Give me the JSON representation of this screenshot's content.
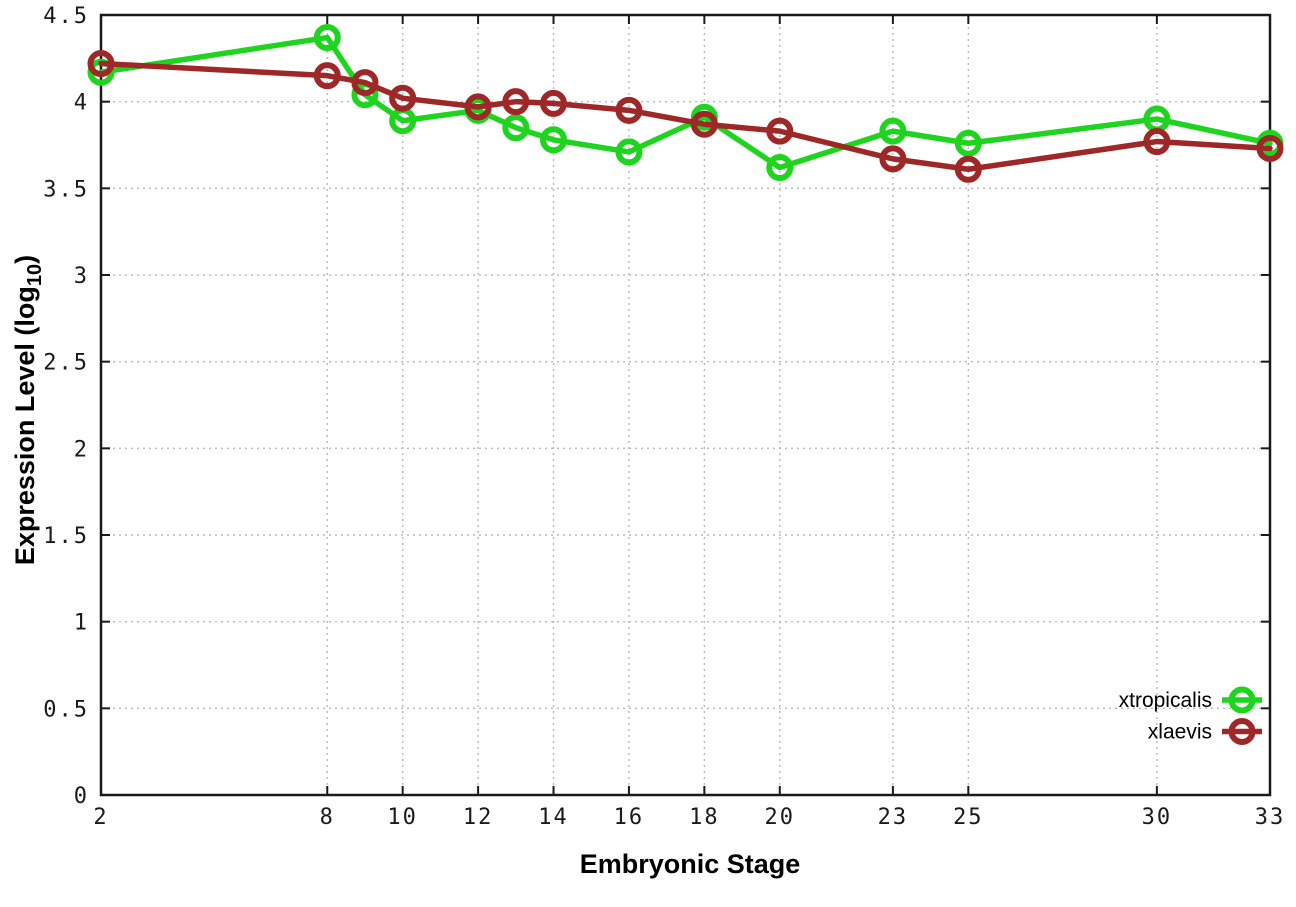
{
  "chart_data": {
    "type": "line",
    "title": "",
    "xlabel": "Embryonic Stage",
    "ylabel": "Expression Level (log10)",
    "ylabel_parts": [
      "Expression Level (log",
      "10",
      ")"
    ],
    "xlim": [
      2,
      33
    ],
    "ylim": [
      0,
      4.5
    ],
    "x_ticks": [
      2,
      8,
      10,
      12,
      14,
      16,
      18,
      20,
      23,
      25,
      30,
      33
    ],
    "y_ticks": [
      0,
      0.5,
      1,
      1.5,
      2,
      2.5,
      3,
      3.5,
      4,
      4.5
    ],
    "grid": true,
    "legend_position": "inside-bottom-right",
    "marker": "open-circle",
    "x": [
      2,
      8,
      9,
      10,
      12,
      13,
      14,
      16,
      18,
      20,
      23,
      25,
      30,
      33
    ],
    "series": [
      {
        "name": "xtropicalis",
        "color": "#1fd41f",
        "values": [
          4.17,
          4.37,
          4.04,
          3.89,
          3.95,
          3.85,
          3.78,
          3.71,
          3.91,
          3.62,
          3.83,
          3.76,
          3.9,
          3.76
        ]
      },
      {
        "name": "xlaevis",
        "color": "#9e2828",
        "values": [
          4.22,
          4.15,
          4.11,
          4.02,
          3.97,
          4.0,
          3.99,
          3.95,
          3.87,
          3.83,
          3.67,
          3.61,
          3.77,
          3.73
        ]
      }
    ],
    "colors": {
      "grid": "#b8b8b8",
      "axis": "#1a1a1a",
      "background": "#ffffff"
    }
  }
}
